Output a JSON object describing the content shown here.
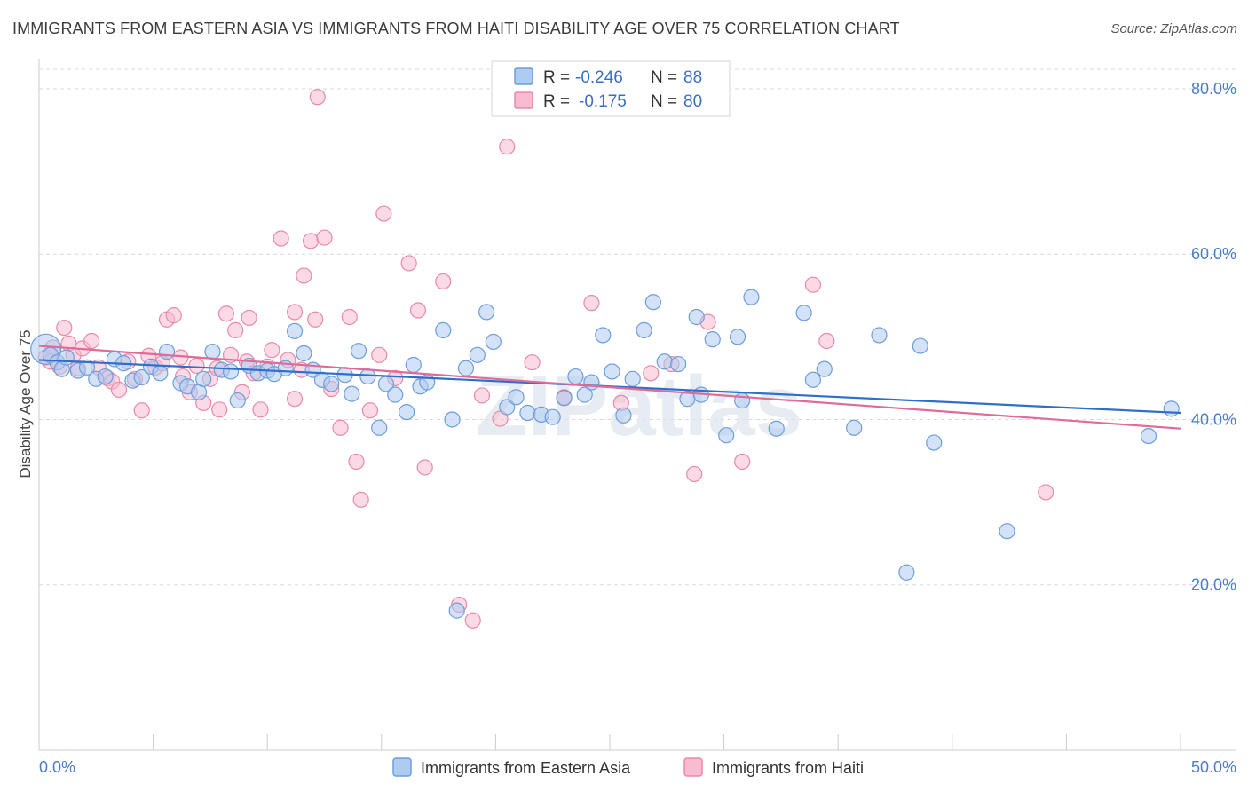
{
  "title": "IMMIGRANTS FROM EASTERN ASIA VS IMMIGRANTS FROM HAITI DISABILITY AGE OVER 75 CORRELATION CHART",
  "source": "Source: ZipAtlas.com",
  "watermark": "ZIPatlas",
  "colors": {
    "blue_fill": "#aecbf0",
    "blue_stroke": "#6d9edb",
    "blue_line": "#2f6fcc",
    "pink_fill": "#f7bcd0",
    "pink_stroke": "#e88aa8",
    "pink_line": "#e06a98",
    "tick_text": "#4a7cc7",
    "grid": "#d9d9d9"
  },
  "legend_top": {
    "rows": [
      {
        "r_label": "R = ",
        "r_value": "-0.246",
        "n_label": "N = ",
        "n_value": "88",
        "series": "blue"
      },
      {
        "r_label": "R = ",
        "r_value": "-0.175",
        "n_label": "N = ",
        "n_value": "80",
        "series": "pink"
      }
    ]
  },
  "chart_data": {
    "type": "scatter",
    "title": "IMMIGRANTS FROM EASTERN ASIA VS IMMIGRANTS FROM HAITI DISABILITY AGE OVER 75 CORRELATION CHART",
    "xlabel": "",
    "ylabel": "Disability Age Over 75",
    "xlim": [
      0,
      50
    ],
    "ylim": [
      0,
      83
    ],
    "x_tick_labels": [
      "0.0%",
      "50.0%"
    ],
    "y_ticks": [
      20,
      40,
      60,
      80
    ],
    "y_tick_labels": [
      "20.0%",
      "40.0%",
      "60.0%",
      "80.0%"
    ],
    "grid": true,
    "legend_position": "top-center",
    "series": [
      {
        "name": "Immigrants from Eastern Asia",
        "color": "blue",
        "r": -0.246,
        "n": 88,
        "trend": {
          "x": [
            0,
            50
          ],
          "y": [
            47.2,
            40.8
          ]
        },
        "points": [
          [
            0.3,
            48.5
          ],
          [
            0.5,
            47.8
          ],
          [
            0.8,
            46.9
          ],
          [
            1.0,
            46.1
          ],
          [
            1.2,
            47.5
          ],
          [
            1.7,
            45.9
          ],
          [
            2.1,
            46.3
          ],
          [
            2.5,
            44.9
          ],
          [
            2.9,
            45.2
          ],
          [
            3.3,
            47.3
          ],
          [
            3.7,
            46.8
          ],
          [
            4.1,
            44.7
          ],
          [
            4.5,
            45.1
          ],
          [
            4.9,
            46.4
          ],
          [
            5.3,
            45.6
          ],
          [
            5.6,
            48.2
          ],
          [
            6.2,
            44.4
          ],
          [
            6.5,
            44.0
          ],
          [
            7.0,
            43.3
          ],
          [
            7.2,
            44.9
          ],
          [
            7.6,
            48.2
          ],
          [
            8.0,
            46.0
          ],
          [
            8.4,
            45.8
          ],
          [
            8.7,
            42.3
          ],
          [
            9.2,
            46.5
          ],
          [
            9.6,
            45.6
          ],
          [
            10.0,
            45.9
          ],
          [
            10.3,
            45.5
          ],
          [
            10.8,
            46.2
          ],
          [
            11.2,
            50.7
          ],
          [
            11.6,
            48.0
          ],
          [
            12.0,
            46.0
          ],
          [
            12.4,
            44.8
          ],
          [
            12.8,
            44.3
          ],
          [
            13.4,
            45.4
          ],
          [
            13.7,
            43.1
          ],
          [
            14.0,
            48.3
          ],
          [
            14.4,
            45.2
          ],
          [
            14.9,
            39.0
          ],
          [
            15.2,
            44.3
          ],
          [
            15.6,
            43.0
          ],
          [
            16.1,
            40.9
          ],
          [
            16.4,
            46.6
          ],
          [
            16.7,
            44.0
          ],
          [
            17.0,
            44.5
          ],
          [
            17.7,
            50.8
          ],
          [
            18.1,
            40.0
          ],
          [
            18.7,
            46.2
          ],
          [
            19.2,
            47.8
          ],
          [
            19.6,
            53.0
          ],
          [
            19.9,
            49.4
          ],
          [
            20.5,
            41.5
          ],
          [
            20.9,
            42.7
          ],
          [
            21.4,
            40.8
          ],
          [
            22.0,
            40.6
          ],
          [
            22.5,
            40.3
          ],
          [
            23.0,
            42.6
          ],
          [
            23.5,
            45.2
          ],
          [
            23.9,
            43.0
          ],
          [
            24.2,
            44.5
          ],
          [
            24.7,
            50.2
          ],
          [
            25.1,
            45.8
          ],
          [
            25.6,
            40.5
          ],
          [
            26.0,
            44.9
          ],
          [
            26.5,
            50.8
          ],
          [
            26.9,
            54.2
          ],
          [
            27.4,
            47.0
          ],
          [
            28.0,
            46.7
          ],
          [
            28.4,
            42.5
          ],
          [
            28.8,
            52.4
          ],
          [
            29.0,
            43.0
          ],
          [
            29.5,
            49.7
          ],
          [
            30.1,
            38.1
          ],
          [
            30.6,
            50.0
          ],
          [
            30.8,
            42.3
          ],
          [
            31.2,
            54.8
          ],
          [
            32.3,
            38.9
          ],
          [
            33.5,
            52.9
          ],
          [
            33.9,
            44.8
          ],
          [
            34.4,
            46.1
          ],
          [
            35.7,
            39.0
          ],
          [
            36.8,
            50.2
          ],
          [
            38.0,
            21.5
          ],
          [
            38.6,
            48.9
          ],
          [
            39.2,
            37.2
          ],
          [
            42.4,
            26.5
          ],
          [
            48.6,
            38.0
          ],
          [
            49.6,
            41.3
          ],
          [
            18.3,
            16.9
          ]
        ]
      },
      {
        "name": "Immigrants from Haiti",
        "color": "pink",
        "r": -0.175,
        "n": 80,
        "trend": {
          "x": [
            0,
            50
          ],
          "y": [
            48.9,
            38.9
          ]
        },
        "points": [
          [
            0.3,
            47.5
          ],
          [
            0.6,
            48.7
          ],
          [
            0.9,
            46.4
          ],
          [
            1.1,
            51.1
          ],
          [
            1.3,
            49.2
          ],
          [
            1.5,
            47.8
          ],
          [
            1.9,
            48.6
          ],
          [
            2.3,
            49.5
          ],
          [
            2.6,
            46.3
          ],
          [
            3.0,
            45.0
          ],
          [
            3.2,
            44.6
          ],
          [
            3.5,
            43.6
          ],
          [
            3.9,
            47.0
          ],
          [
            4.2,
            44.9
          ],
          [
            4.5,
            41.1
          ],
          [
            4.8,
            47.7
          ],
          [
            5.1,
            46.3
          ],
          [
            5.4,
            46.8
          ],
          [
            5.6,
            52.1
          ],
          [
            5.9,
            52.6
          ],
          [
            6.3,
            45.2
          ],
          [
            6.6,
            43.3
          ],
          [
            6.9,
            46.5
          ],
          [
            7.2,
            42.0
          ],
          [
            7.5,
            44.9
          ],
          [
            7.8,
            46.2
          ],
          [
            7.9,
            41.2
          ],
          [
            8.2,
            52.8
          ],
          [
            8.4,
            47.8
          ],
          [
            8.6,
            50.8
          ],
          [
            8.9,
            43.3
          ],
          [
            9.1,
            47.0
          ],
          [
            9.4,
            45.6
          ],
          [
            9.7,
            41.2
          ],
          [
            10.0,
            46.4
          ],
          [
            10.2,
            48.4
          ],
          [
            10.6,
            61.9
          ],
          [
            10.9,
            47.2
          ],
          [
            11.2,
            53.0
          ],
          [
            11.2,
            42.5
          ],
          [
            11.6,
            57.4
          ],
          [
            11.9,
            61.6
          ],
          [
            12.1,
            52.1
          ],
          [
            12.5,
            62.0
          ],
          [
            12.8,
            43.7
          ],
          [
            13.2,
            39.0
          ],
          [
            13.6,
            52.4
          ],
          [
            13.9,
            34.9
          ],
          [
            14.1,
            30.3
          ],
          [
            14.5,
            41.1
          ],
          [
            14.9,
            47.8
          ],
          [
            15.1,
            64.9
          ],
          [
            15.6,
            45.0
          ],
          [
            16.2,
            58.9
          ],
          [
            16.6,
            53.2
          ],
          [
            16.9,
            34.2
          ],
          [
            17.7,
            56.7
          ],
          [
            18.4,
            17.6
          ],
          [
            19.0,
            15.7
          ],
          [
            19.4,
            42.9
          ],
          [
            20.2,
            40.1
          ],
          [
            20.5,
            73.0
          ],
          [
            21.6,
            46.9
          ],
          [
            23.0,
            42.7
          ],
          [
            24.2,
            54.1
          ],
          [
            25.5,
            42.0
          ],
          [
            26.8,
            45.6
          ],
          [
            27.7,
            46.7
          ],
          [
            28.7,
            33.4
          ],
          [
            29.3,
            51.8
          ],
          [
            30.8,
            34.9
          ],
          [
            33.9,
            56.3
          ],
          [
            34.5,
            49.5
          ],
          [
            44.1,
            31.2
          ],
          [
            0.5,
            47.0
          ],
          [
            1.7,
            46.2
          ],
          [
            6.2,
            47.5
          ],
          [
            12.2,
            79.0
          ],
          [
            9.2,
            52.3
          ],
          [
            11.5,
            46.0
          ]
        ]
      }
    ]
  },
  "bottom_legend": {
    "items": [
      "Immigrants from Eastern Asia",
      "Immigrants from Haiti"
    ]
  }
}
